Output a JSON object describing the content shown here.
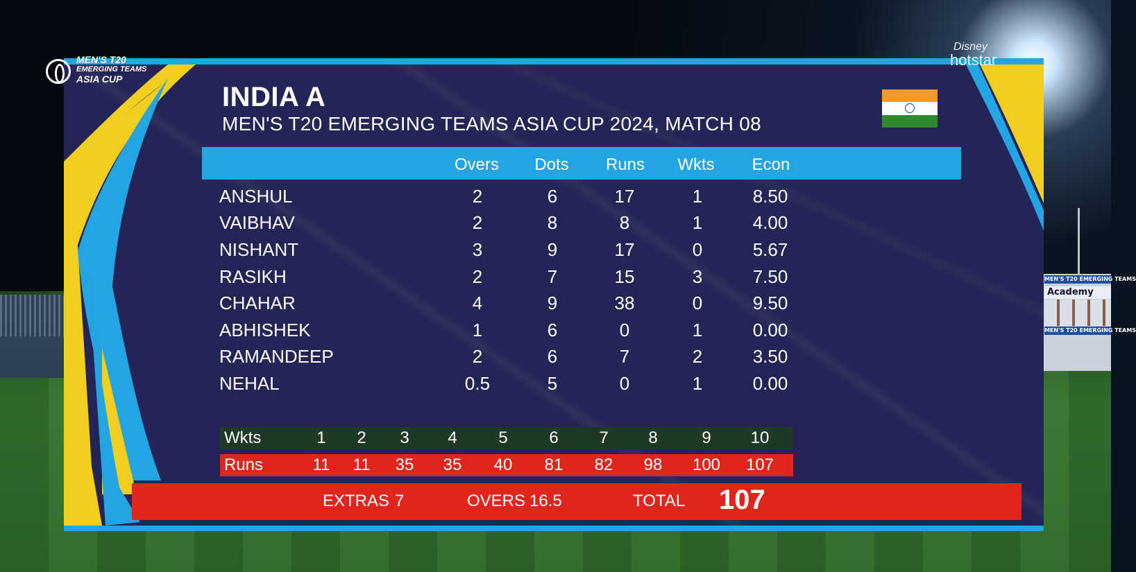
{
  "event_logo": {
    "line1": "MEN'S T20",
    "line2": "EMERGING TEAMS",
    "line3": "ASIA CUP"
  },
  "broadcaster": {
    "disney": "Disney",
    "name": "hotstar"
  },
  "team": "INDIA A",
  "match": "MEN'S T20 EMERGING TEAMS ASIA CUP 2024, MATCH 08",
  "columns": [
    "Overs",
    "Dots",
    "Runs",
    "Wkts",
    "Econ"
  ],
  "bowlers": [
    {
      "name": "ANSHUL",
      "overs": "2",
      "dots": "6",
      "runs": "17",
      "wkts": "1",
      "econ": "8.50"
    },
    {
      "name": "VAIBHAV",
      "overs": "2",
      "dots": "8",
      "runs": "8",
      "wkts": "1",
      "econ": "4.00"
    },
    {
      "name": "NISHANT",
      "overs": "3",
      "dots": "9",
      "runs": "17",
      "wkts": "0",
      "econ": "5.67"
    },
    {
      "name": "RASIKH",
      "overs": "2",
      "dots": "7",
      "runs": "15",
      "wkts": "3",
      "econ": "7.50"
    },
    {
      "name": "CHAHAR",
      "overs": "4",
      "dots": "9",
      "runs": "38",
      "wkts": "0",
      "econ": "9.50"
    },
    {
      "name": "ABHISHEK",
      "overs": "1",
      "dots": "6",
      "runs": "0",
      "wkts": "1",
      "econ": "0.00"
    },
    {
      "name": "RAMANDEEP",
      "overs": "2",
      "dots": "6",
      "runs": "7",
      "wkts": "2",
      "econ": "3.50"
    },
    {
      "name": "NEHAL",
      "overs": "0.5",
      "dots": "5",
      "runs": "0",
      "wkts": "1",
      "econ": "0.00"
    }
  ],
  "fall_of_wickets": {
    "wkts_label": "Wkts",
    "runs_label": "Runs",
    "wkts": [
      "1",
      "2",
      "3",
      "4",
      "5",
      "6",
      "7",
      "8",
      "9",
      "10"
    ],
    "runs": [
      "11",
      "11",
      "35",
      "35",
      "40",
      "81",
      "82",
      "98",
      "100",
      "107"
    ]
  },
  "summary": {
    "extras_label": "EXTRAS",
    "extras": "7",
    "overs_label": "OVERS",
    "overs": "16.5",
    "total_label": "TOTAL",
    "total": "107"
  },
  "background": {
    "stand_sign": "Academy",
    "stand_banner": "MEN'S T20 EMERGING TEAMS"
  },
  "colors": {
    "board": "#232556",
    "accent_blue": "#23a4e3",
    "accent_yellow": "#f2cf1f",
    "red": "#e0251c",
    "dark_green": "#1f3a23"
  }
}
